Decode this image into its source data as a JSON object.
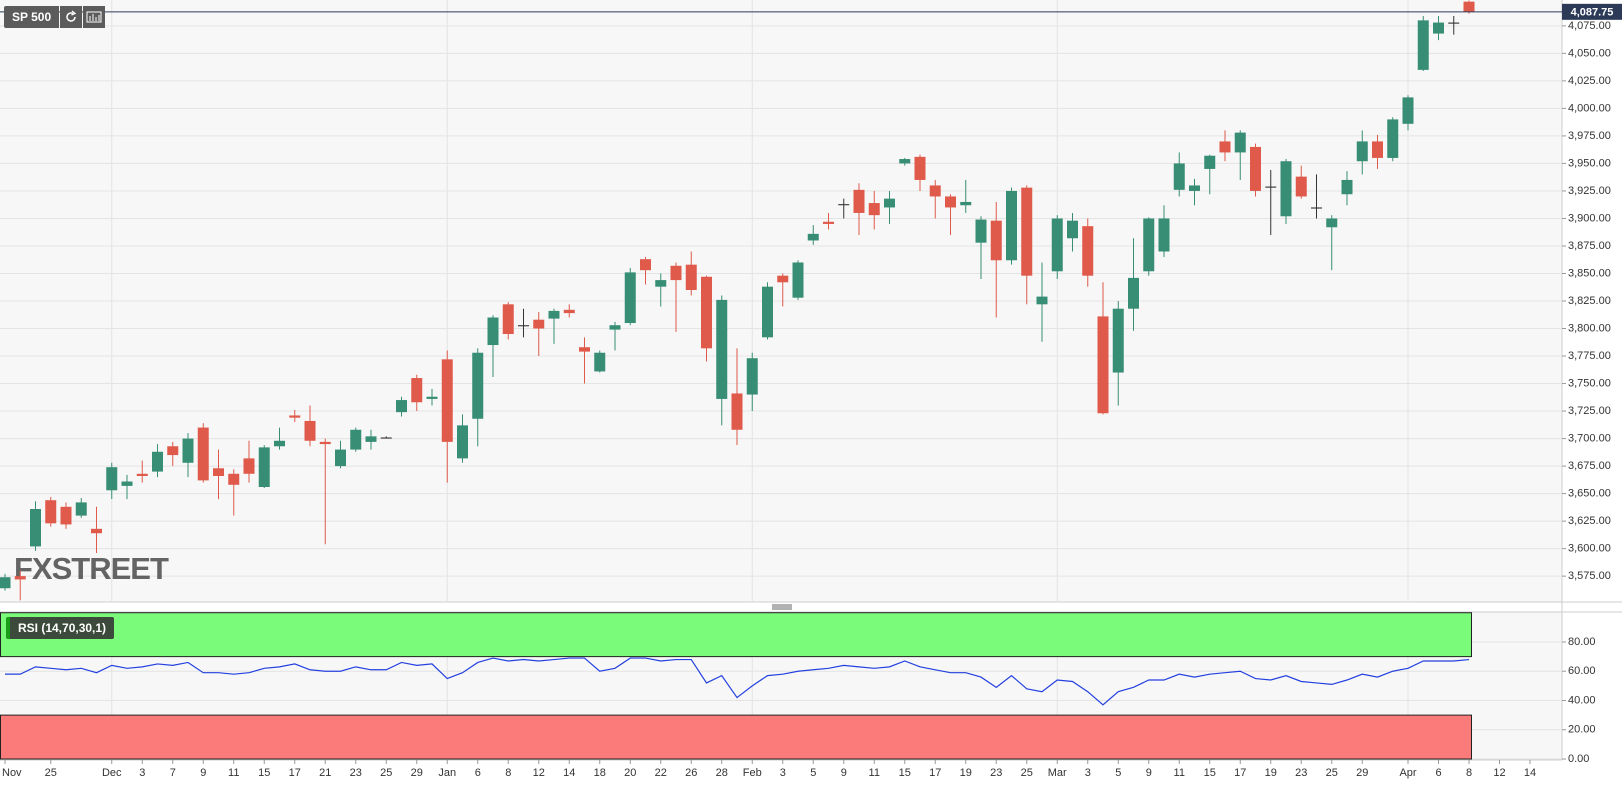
{
  "chart_data": [
    {
      "type": "candlestick",
      "title": "SP 500",
      "watermark": "FXSTREET",
      "categories": [
        "Nov",
        null,
        null,
        "25",
        null,
        null,
        null,
        "Dec",
        null,
        "3",
        null,
        "7",
        null,
        "9",
        null,
        "11",
        null,
        "15",
        null,
        "17",
        null,
        "21",
        null,
        "23",
        null,
        "25",
        null,
        "29",
        null,
        "Jan",
        null,
        "6",
        null,
        "8",
        null,
        "12",
        null,
        "14",
        null,
        "18",
        null,
        "20",
        null,
        "22",
        null,
        "26",
        null,
        "28",
        null,
        "Feb",
        null,
        "3",
        null,
        "5",
        null,
        "9",
        null,
        "11",
        null,
        "15",
        null,
        "17",
        null,
        "19",
        null,
        "23",
        null,
        "25",
        null,
        "Mar",
        null,
        "3",
        null,
        "5",
        null,
        "9",
        null,
        "11",
        null,
        "15",
        null,
        "17",
        null,
        "19",
        null,
        "23",
        null,
        "25",
        null,
        "29",
        null,
        null,
        "Apr",
        null,
        "6",
        null,
        "8",
        null,
        "12",
        null,
        "14"
      ],
      "open": [
        3564,
        3575,
        3602,
        3644,
        3638,
        3630,
        3618,
        3653,
        3657,
        3668,
        3670,
        3693,
        3678,
        3710,
        3673,
        3668,
        3682,
        3656,
        3693,
        3721,
        3716,
        3697,
        3675,
        3690,
        3697,
        3700,
        3724,
        3755,
        3736,
        3772,
        3682,
        3718,
        3785,
        3822,
        3802,
        3808,
        3809,
        3817,
        3783,
        3761,
        3799,
        3805,
        3863,
        3838,
        3857,
        3858,
        3847,
        3736,
        3741,
        3740,
        3792,
        3848,
        3828,
        3880,
        3897,
        3913,
        3926,
        3914,
        3910,
        3950,
        3956,
        3930,
        3920,
        3912,
        3878,
        3898,
        3862,
        3928,
        3822,
        3852,
        3882,
        3893,
        3811,
        3760,
        3818,
        3852,
        3870,
        3926,
        3925,
        3945,
        3970,
        3960,
        3965,
        3928,
        3902,
        3938,
        3909,
        3892,
        3922,
        3952,
        3970,
        3955,
        3986,
        4035,
        4068,
        4077,
        4097,
        null,
        null,
        null,
        null
      ],
      "high": [
        3577,
        3580,
        3643,
        3647,
        3642,
        3646,
        3638,
        3678,
        3667,
        3680,
        3695,
        3697,
        3705,
        3714,
        3690,
        3672,
        3698,
        3694,
        3710,
        3726,
        3730,
        3700,
        3698,
        3710,
        3708,
        3702,
        3738,
        3758,
        3745,
        3780,
        3722,
        3782,
        3812,
        3824,
        3818,
        3815,
        3818,
        3822,
        3792,
        3780,
        3806,
        3855,
        3865,
        3850,
        3860,
        3870,
        3848,
        3830,
        3782,
        3778,
        3842,
        3850,
        3862,
        3894,
        3905,
        3918,
        3932,
        3925,
        3925,
        3955,
        3958,
        3935,
        3922,
        3935,
        3902,
        3915,
        3928,
        3930,
        3860,
        3903,
        3905,
        3900,
        3842,
        3825,
        3882,
        3901,
        3912,
        3960,
        3936,
        3958,
        3980,
        3980,
        3968,
        3944,
        3954,
        3948,
        3940,
        3903,
        3943,
        3980,
        3976,
        3992,
        4012,
        4084,
        4084,
        4084,
        4098,
        null,
        null,
        null,
        null
      ],
      "low": [
        3562,
        3553,
        3598,
        3620,
        3618,
        3628,
        3596,
        3645,
        3645,
        3660,
        3665,
        3675,
        3665,
        3660,
        3645,
        3630,
        3660,
        3655,
        3690,
        3715,
        3693,
        3604,
        3673,
        3688,
        3690,
        3700,
        3720,
        3725,
        3730,
        3660,
        3678,
        3693,
        3756,
        3790,
        3792,
        3775,
        3786,
        3810,
        3750,
        3760,
        3780,
        3803,
        3840,
        3820,
        3797,
        3830,
        3770,
        3712,
        3694,
        3725,
        3790,
        3820,
        3826,
        3876,
        3890,
        3900,
        3885,
        3890,
        3895,
        3948,
        3925,
        3900,
        3885,
        3905,
        3845,
        3810,
        3858,
        3822,
        3788,
        3845,
        3870,
        3838,
        3722,
        3730,
        3798,
        3848,
        3865,
        3920,
        3912,
        3922,
        3952,
        3935,
        3920,
        3885,
        3895,
        3918,
        3900,
        3853,
        3912,
        3940,
        3945,
        3952,
        3980,
        4034,
        4062,
        4067,
        4086,
        null,
        null,
        null,
        null
      ],
      "close": [
        3574,
        3572,
        3636,
        3623,
        3622,
        3642,
        3614,
        3674,
        3661,
        3666,
        3688,
        3685,
        3700,
        3662,
        3666,
        3658,
        3668,
        3692,
        3698,
        3719,
        3698,
        3695,
        3690,
        3708,
        3702,
        3701,
        3735,
        3733,
        3738,
        3697,
        3712,
        3778,
        3810,
        3795,
        3803,
        3800,
        3816,
        3814,
        3779,
        3778,
        3803,
        3851,
        3853,
        3844,
        3844,
        3835,
        3782,
        3826,
        3708,
        3773,
        3838,
        3842,
        3860,
        3886,
        3895,
        3912,
        3905,
        3903,
        3918,
        3954,
        3935,
        3920,
        3910,
        3915,
        3899,
        3862,
        3925,
        3848,
        3829,
        3900,
        3898,
        3848,
        3723,
        3818,
        3846,
        3900,
        3900,
        3950,
        3930,
        3957,
        3960,
        3978,
        3925,
        3929,
        3952,
        3920,
        3910,
        3900,
        3935,
        3970,
        3955,
        3990,
        4010,
        4080,
        4078,
        4078,
        4087.75,
        null,
        null,
        null,
        null
      ],
      "up_color": "#378e74",
      "down_color": "#df5a4b",
      "price_marker": {
        "value": 4087.75,
        "label": "4,087.75",
        "color": "#2c3a58"
      },
      "ylim": [
        3551.5,
        4098.5
      ],
      "yticks": [
        {
          "value": 3575,
          "label": "3,575.00"
        },
        {
          "value": 3600,
          "label": "3,600.00"
        },
        {
          "value": 3625,
          "label": "3,625.00"
        },
        {
          "value": 3650,
          "label": "3,650.00"
        },
        {
          "value": 3675,
          "label": "3,675.00"
        },
        {
          "value": 3700,
          "label": "3,700.00"
        },
        {
          "value": 3725,
          "label": "3,725.00"
        },
        {
          "value": 3750,
          "label": "3,750.00"
        },
        {
          "value": 3775,
          "label": "3,775.00"
        },
        {
          "value": 3800,
          "label": "3,800.00"
        },
        {
          "value": 3825,
          "label": "3,825.00"
        },
        {
          "value": 3850,
          "label": "3,850.00"
        },
        {
          "value": 3875,
          "label": "3,875.00"
        },
        {
          "value": 3900,
          "label": "3,900.00"
        },
        {
          "value": 3925,
          "label": "3,925.00"
        },
        {
          "value": 3950,
          "label": "3,950.00"
        },
        {
          "value": 3975,
          "label": "3,975.00"
        },
        {
          "value": 4000,
          "label": "4,000.00"
        },
        {
          "value": 4025,
          "label": "4,025.00"
        },
        {
          "value": 4050,
          "label": "4,050.00"
        },
        {
          "value": 4075,
          "label": "4,075.00"
        }
      ],
      "grid": true
    },
    {
      "type": "line",
      "title": "RSI (14,70,30,1)",
      "values": [
        58,
        58,
        63,
        62,
        61,
        62,
        59,
        64,
        62,
        63,
        65,
        64,
        66,
        59,
        59,
        58,
        59,
        62,
        63,
        65,
        61,
        60,
        60,
        63,
        61,
        61,
        66,
        64,
        65,
        55,
        59,
        66,
        69,
        67,
        68,
        67,
        68,
        69,
        69,
        60,
        62,
        69,
        69,
        67,
        68,
        68,
        52,
        57,
        42,
        50,
        57,
        58,
        60,
        61,
        62,
        64,
        63,
        62,
        63,
        67,
        63,
        61,
        59,
        59,
        56,
        49,
        57,
        48,
        46,
        54,
        53,
        46,
        37,
        46,
        49,
        54,
        54,
        58,
        56,
        58,
        59,
        60,
        55,
        54,
        57,
        53,
        52,
        51,
        54,
        58,
        56,
        60,
        62,
        67,
        67,
        67,
        68,
        null,
        null,
        null,
        null
      ],
      "color": "#2340e0",
      "bands": [
        {
          "from": 70,
          "to": 100,
          "color": "#7afc7a"
        },
        {
          "from": 0,
          "to": 30,
          "color": "#fb7a7a"
        }
      ],
      "ylim": [
        0,
        100.5
      ],
      "yticks": [
        {
          "value": 0,
          "label": "0.00"
        },
        {
          "value": 20,
          "label": "20.00"
        },
        {
          "value": 40,
          "label": "40.00"
        },
        {
          "value": 60,
          "label": "60.00"
        },
        {
          "value": 80,
          "label": "80.00"
        }
      ],
      "grid": true
    }
  ]
}
